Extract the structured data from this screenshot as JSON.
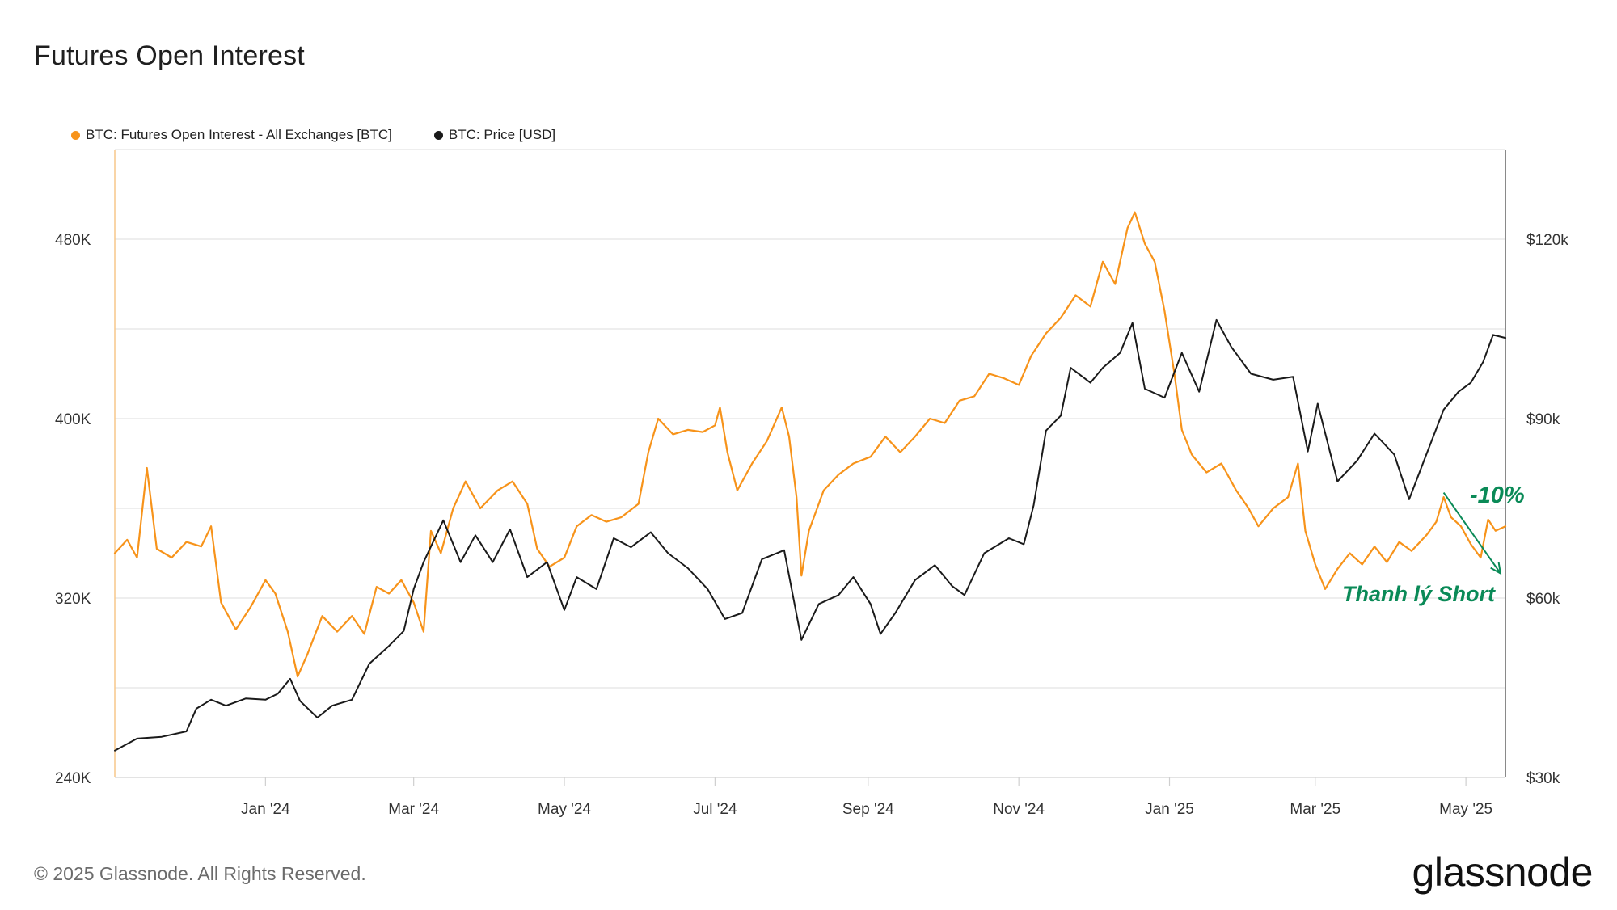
{
  "page": {
    "title": "Futures Open Interest",
    "footer": "© 2025 Glassnode. All Rights Reserved.",
    "brand": "glassnode"
  },
  "colors": {
    "oi": "#f7931a",
    "price": "#1a1a1a",
    "grid": "#e4e4e4",
    "annotation": "#0a8a57"
  },
  "chart_data": {
    "type": "line",
    "title": "Futures Open Interest",
    "grid": true,
    "legend_placement": "top-left",
    "y_left": {
      "ticks": [
        240000,
        320000,
        400000,
        480000
      ],
      "tick_labels": [
        "240K",
        "320K",
        "400K",
        "480K"
      ],
      "range": [
        240000,
        520000
      ]
    },
    "y_right": {
      "ticks": [
        30000,
        60000,
        90000,
        120000
      ],
      "tick_labels": [
        "$30k",
        "$60k",
        "$90k",
        "$120k"
      ],
      "range": [
        30000,
        135000
      ]
    },
    "x_range": [
      "2023-11-01",
      "2025-05-17"
    ],
    "x_ticks": [
      {
        "date": "2024-01-01",
        "label": "Jan '24"
      },
      {
        "date": "2024-03-01",
        "label": "Mar '24"
      },
      {
        "date": "2024-05-01",
        "label": "May '24"
      },
      {
        "date": "2024-07-01",
        "label": "Jul '24"
      },
      {
        "date": "2024-09-01",
        "label": "Sep '24"
      },
      {
        "date": "2024-11-01",
        "label": "Nov '24"
      },
      {
        "date": "2025-01-01",
        "label": "Jan '25"
      },
      {
        "date": "2025-03-01",
        "label": "Mar '25"
      },
      {
        "date": "2025-05-01",
        "label": "May '25"
      }
    ],
    "series": [
      {
        "name": "BTC: Futures Open Interest - All Exchanges [BTC]",
        "axis": "left",
        "points": [
          [
            "2023-11-01",
            340000
          ],
          [
            "2023-11-06",
            346000
          ],
          [
            "2023-11-10",
            338000
          ],
          [
            "2023-11-14",
            378000
          ],
          [
            "2023-11-18",
            342000
          ],
          [
            "2023-11-24",
            338000
          ],
          [
            "2023-11-30",
            345000
          ],
          [
            "2023-12-06",
            343000
          ],
          [
            "2023-12-10",
            352000
          ],
          [
            "2023-12-14",
            318000
          ],
          [
            "2023-12-20",
            306000
          ],
          [
            "2023-12-26",
            316000
          ],
          [
            "2024-01-01",
            328000
          ],
          [
            "2024-01-05",
            322000
          ],
          [
            "2024-01-10",
            305000
          ],
          [
            "2024-01-14",
            285000
          ],
          [
            "2024-01-18",
            295000
          ],
          [
            "2024-01-24",
            312000
          ],
          [
            "2024-01-30",
            305000
          ],
          [
            "2024-02-05",
            312000
          ],
          [
            "2024-02-10",
            304000
          ],
          [
            "2024-02-15",
            325000
          ],
          [
            "2024-02-20",
            322000
          ],
          [
            "2024-02-25",
            328000
          ],
          [
            "2024-03-01",
            318000
          ],
          [
            "2024-03-05",
            305000
          ],
          [
            "2024-03-08",
            350000
          ],
          [
            "2024-03-12",
            340000
          ],
          [
            "2024-03-17",
            360000
          ],
          [
            "2024-03-22",
            372000
          ],
          [
            "2024-03-28",
            360000
          ],
          [
            "2024-04-04",
            368000
          ],
          [
            "2024-04-10",
            372000
          ],
          [
            "2024-04-16",
            362000
          ],
          [
            "2024-04-20",
            342000
          ],
          [
            "2024-04-25",
            334000
          ],
          [
            "2024-05-01",
            338000
          ],
          [
            "2024-05-06",
            352000
          ],
          [
            "2024-05-12",
            357000
          ],
          [
            "2024-05-18",
            354000
          ],
          [
            "2024-05-24",
            356000
          ],
          [
            "2024-05-31",
            362000
          ],
          [
            "2024-06-04",
            385000
          ],
          [
            "2024-06-08",
            400000
          ],
          [
            "2024-06-14",
            393000
          ],
          [
            "2024-06-20",
            395000
          ],
          [
            "2024-06-26",
            394000
          ],
          [
            "2024-07-01",
            397000
          ],
          [
            "2024-07-03",
            405000
          ],
          [
            "2024-07-06",
            385000
          ],
          [
            "2024-07-10",
            368000
          ],
          [
            "2024-07-16",
            380000
          ],
          [
            "2024-07-22",
            390000
          ],
          [
            "2024-07-28",
            405000
          ],
          [
            "2024-07-31",
            392000
          ],
          [
            "2024-08-03",
            365000
          ],
          [
            "2024-08-05",
            330000
          ],
          [
            "2024-08-08",
            350000
          ],
          [
            "2024-08-14",
            368000
          ],
          [
            "2024-08-20",
            375000
          ],
          [
            "2024-08-26",
            380000
          ],
          [
            "2024-09-02",
            383000
          ],
          [
            "2024-09-08",
            392000
          ],
          [
            "2024-09-14",
            385000
          ],
          [
            "2024-09-20",
            392000
          ],
          [
            "2024-09-26",
            400000
          ],
          [
            "2024-10-02",
            398000
          ],
          [
            "2024-10-08",
            408000
          ],
          [
            "2024-10-14",
            410000
          ],
          [
            "2024-10-20",
            420000
          ],
          [
            "2024-10-26",
            418000
          ],
          [
            "2024-11-01",
            415000
          ],
          [
            "2024-11-06",
            428000
          ],
          [
            "2024-11-12",
            438000
          ],
          [
            "2024-11-18",
            445000
          ],
          [
            "2024-11-24",
            455000
          ],
          [
            "2024-11-30",
            450000
          ],
          [
            "2024-12-05",
            470000
          ],
          [
            "2024-12-10",
            460000
          ],
          [
            "2024-12-15",
            485000
          ],
          [
            "2024-12-18",
            492000
          ],
          [
            "2024-12-22",
            478000
          ],
          [
            "2024-12-26",
            470000
          ],
          [
            "2024-12-30",
            448000
          ],
          [
            "2025-01-03",
            420000
          ],
          [
            "2025-01-06",
            395000
          ],
          [
            "2025-01-10",
            384000
          ],
          [
            "2025-01-16",
            376000
          ],
          [
            "2025-01-22",
            380000
          ],
          [
            "2025-01-28",
            368000
          ],
          [
            "2025-02-02",
            360000
          ],
          [
            "2025-02-06",
            352000
          ],
          [
            "2025-02-12",
            360000
          ],
          [
            "2025-02-18",
            365000
          ],
          [
            "2025-02-22",
            380000
          ],
          [
            "2025-02-25",
            350000
          ],
          [
            "2025-03-01",
            335000
          ],
          [
            "2025-03-05",
            324000
          ],
          [
            "2025-03-10",
            333000
          ],
          [
            "2025-03-15",
            340000
          ],
          [
            "2025-03-20",
            335000
          ],
          [
            "2025-03-25",
            343000
          ],
          [
            "2025-03-30",
            336000
          ],
          [
            "2025-04-04",
            345000
          ],
          [
            "2025-04-09",
            341000
          ],
          [
            "2025-04-15",
            348000
          ],
          [
            "2025-04-19",
            354000
          ],
          [
            "2025-04-22",
            365000
          ],
          [
            "2025-04-25",
            356000
          ],
          [
            "2025-04-29",
            352000
          ],
          [
            "2025-05-03",
            344000
          ],
          [
            "2025-05-07",
            338000
          ],
          [
            "2025-05-10",
            355000
          ],
          [
            "2025-05-13",
            350000
          ],
          [
            "2025-05-17",
            352000
          ]
        ]
      },
      {
        "name": "BTC: Price [USD]",
        "axis": "right",
        "points": [
          [
            "2023-11-01",
            34500
          ],
          [
            "2023-11-10",
            36500
          ],
          [
            "2023-11-20",
            36800
          ],
          [
            "2023-11-30",
            37700
          ],
          [
            "2023-12-04",
            41500
          ],
          [
            "2023-12-10",
            43000
          ],
          [
            "2023-12-16",
            42000
          ],
          [
            "2023-12-24",
            43200
          ],
          [
            "2024-01-01",
            43000
          ],
          [
            "2024-01-06",
            44000
          ],
          [
            "2024-01-11",
            46500
          ],
          [
            "2024-01-15",
            42800
          ],
          [
            "2024-01-22",
            40000
          ],
          [
            "2024-01-28",
            42000
          ],
          [
            "2024-02-05",
            43000
          ],
          [
            "2024-02-12",
            49000
          ],
          [
            "2024-02-20",
            52000
          ],
          [
            "2024-02-26",
            54500
          ],
          [
            "2024-03-01",
            61500
          ],
          [
            "2024-03-05",
            66000
          ],
          [
            "2024-03-13",
            73000
          ],
          [
            "2024-03-20",
            66000
          ],
          [
            "2024-03-26",
            70500
          ],
          [
            "2024-04-02",
            66000
          ],
          [
            "2024-04-09",
            71500
          ],
          [
            "2024-04-16",
            63500
          ],
          [
            "2024-04-24",
            66000
          ],
          [
            "2024-05-01",
            58000
          ],
          [
            "2024-05-06",
            63500
          ],
          [
            "2024-05-14",
            61500
          ],
          [
            "2024-05-21",
            70000
          ],
          [
            "2024-05-28",
            68500
          ],
          [
            "2024-06-05",
            71000
          ],
          [
            "2024-06-12",
            67500
          ],
          [
            "2024-06-20",
            65000
          ],
          [
            "2024-06-28",
            61500
          ],
          [
            "2024-07-05",
            56500
          ],
          [
            "2024-07-12",
            57500
          ],
          [
            "2024-07-20",
            66500
          ],
          [
            "2024-07-29",
            68000
          ],
          [
            "2024-08-05",
            53000
          ],
          [
            "2024-08-12",
            59000
          ],
          [
            "2024-08-20",
            60500
          ],
          [
            "2024-08-26",
            63500
          ],
          [
            "2024-09-02",
            59000
          ],
          [
            "2024-09-06",
            54000
          ],
          [
            "2024-09-12",
            57500
          ],
          [
            "2024-09-20",
            63000
          ],
          [
            "2024-09-28",
            65500
          ],
          [
            "2024-10-05",
            62000
          ],
          [
            "2024-10-10",
            60500
          ],
          [
            "2024-10-18",
            67500
          ],
          [
            "2024-10-28",
            70000
          ],
          [
            "2024-11-03",
            69000
          ],
          [
            "2024-11-07",
            75500
          ],
          [
            "2024-11-12",
            88000
          ],
          [
            "2024-11-18",
            90500
          ],
          [
            "2024-11-22",
            98500
          ],
          [
            "2024-11-30",
            96000
          ],
          [
            "2024-12-05",
            98500
          ],
          [
            "2024-12-12",
            101000
          ],
          [
            "2024-12-17",
            106000
          ],
          [
            "2024-12-22",
            95000
          ],
          [
            "2024-12-30",
            93500
          ],
          [
            "2025-01-06",
            101000
          ],
          [
            "2025-01-13",
            94500
          ],
          [
            "2025-01-20",
            106500
          ],
          [
            "2025-01-26",
            102000
          ],
          [
            "2025-02-03",
            97500
          ],
          [
            "2025-02-12",
            96500
          ],
          [
            "2025-02-20",
            97000
          ],
          [
            "2025-02-26",
            84500
          ],
          [
            "2025-03-02",
            92500
          ],
          [
            "2025-03-10",
            79500
          ],
          [
            "2025-03-18",
            83000
          ],
          [
            "2025-03-25",
            87500
          ],
          [
            "2025-04-02",
            84000
          ],
          [
            "2025-04-08",
            76500
          ],
          [
            "2025-04-15",
            84000
          ],
          [
            "2025-04-22",
            91500
          ],
          [
            "2025-04-28",
            94500
          ],
          [
            "2025-05-03",
            96000
          ],
          [
            "2025-05-08",
            99500
          ],
          [
            "2025-05-12",
            104000
          ],
          [
            "2025-05-17",
            103500
          ]
        ]
      }
    ],
    "annotations": [
      {
        "text": "-10%",
        "date": "2025-04-26",
        "value_left": 364000
      },
      {
        "text": "Thanh lý Short",
        "date": "2025-04-12",
        "value_left": 320000
      }
    ]
  }
}
